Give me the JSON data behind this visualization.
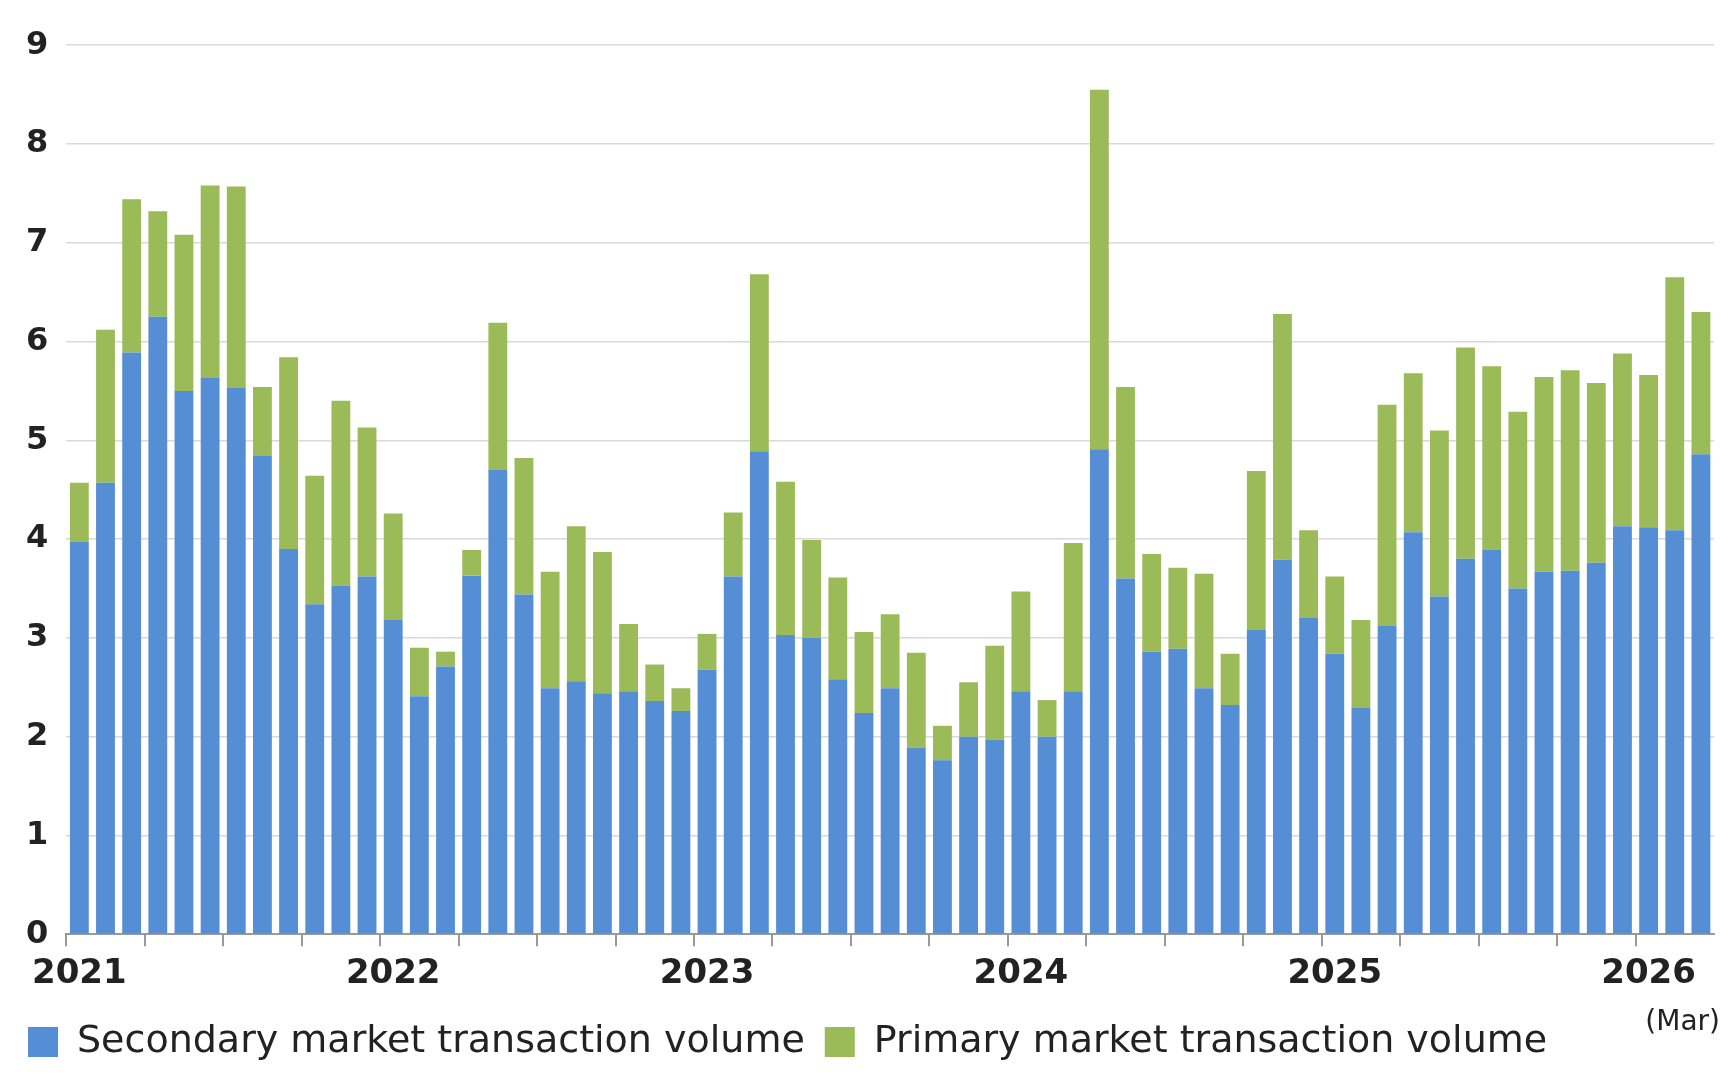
{
  "chart_data": {
    "type": "bar",
    "stacked": true,
    "categories": [
      "2021",
      null,
      null,
      null,
      null,
      null,
      null,
      null,
      null,
      null,
      null,
      null,
      "2022",
      null,
      null,
      null,
      null,
      null,
      null,
      null,
      null,
      null,
      null,
      null,
      "2023",
      null,
      null,
      null,
      null,
      null,
      null,
      null,
      null,
      null,
      null,
      null,
      "2024",
      null,
      null,
      null,
      null,
      null,
      null,
      null,
      null,
      null,
      null,
      null,
      "2025",
      null,
      null,
      null,
      null,
      null,
      null,
      null,
      null,
      null,
      null,
      null,
      "2026",
      null,
      null
    ],
    "series": [
      {
        "name": "Secondary market transaction volume",
        "color": "#558ed5",
        "values": [
          3.97,
          4.57,
          5.89,
          6.25,
          5.5,
          5.63,
          5.53,
          4.84,
          3.9,
          3.34,
          3.53,
          3.62,
          3.18,
          2.41,
          2.71,
          3.63,
          4.7,
          3.44,
          2.49,
          2.56,
          2.44,
          2.46,
          2.36,
          2.26,
          2.68,
          3.62,
          4.89,
          3.03,
          3.0,
          2.58,
          2.24,
          2.49,
          1.89,
          1.76,
          2.0,
          1.97,
          2.46,
          2.0,
          2.46,
          4.91,
          3.6,
          2.86,
          2.89,
          2.49,
          2.32,
          3.08,
          3.79,
          3.2,
          2.84,
          2.29,
          3.12,
          4.07,
          3.42,
          3.8,
          3.89,
          3.5,
          3.67,
          3.68,
          3.76,
          4.13,
          4.12,
          4.09,
          4.86
        ]
      },
      {
        "name": "Primary market transaction volume",
        "color": "#9bbb59",
        "values": [
          0.6,
          1.55,
          1.55,
          1.07,
          1.58,
          1.95,
          2.04,
          0.7,
          1.94,
          1.3,
          1.87,
          1.51,
          1.08,
          0.49,
          0.15,
          0.26,
          1.49,
          1.38,
          1.18,
          1.57,
          1.43,
          0.68,
          0.37,
          0.23,
          0.36,
          0.65,
          1.79,
          1.55,
          0.99,
          1.03,
          0.82,
          0.75,
          0.96,
          0.35,
          0.55,
          0.95,
          1.01,
          0.37,
          1.5,
          3.64,
          1.94,
          0.99,
          0.82,
          1.16,
          0.52,
          1.61,
          2.49,
          0.89,
          0.78,
          0.89,
          2.24,
          1.61,
          1.68,
          2.14,
          1.86,
          1.79,
          1.97,
          2.03,
          1.82,
          1.75,
          1.54,
          2.56,
          1.44
        ]
      }
    ],
    "ylim": [
      0,
      9
    ],
    "yticks": [
      0,
      1,
      2,
      3,
      4,
      5,
      6,
      7,
      8,
      9
    ],
    "grid": "y",
    "legend": "bottom",
    "annotations": [
      "(Mar)"
    ]
  }
}
